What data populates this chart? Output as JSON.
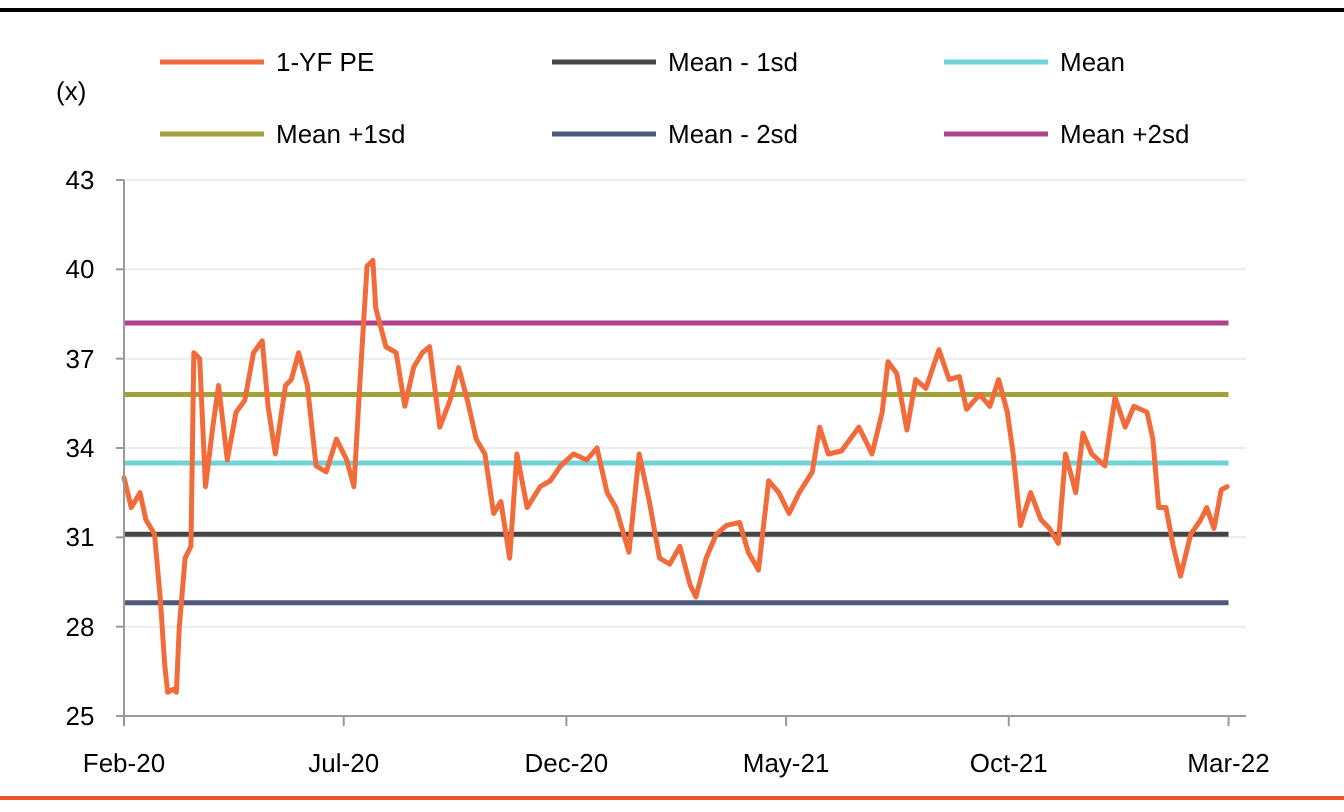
{
  "chart_data": {
    "type": "line",
    "ylabel": "(x)",
    "legend": "top",
    "grid": "y",
    "line_style": "solid",
    "marker": "none",
    "xlim": [
      "2020-02-01",
      "2022-03-13"
    ],
    "xticks": [
      {
        "value": "2020-02-01",
        "label": "Feb-20"
      },
      {
        "value": "2020-07-01",
        "label": "Jul-20"
      },
      {
        "value": "2020-12-01",
        "label": "Dec-20"
      },
      {
        "value": "2021-05-01",
        "label": "May-21"
      },
      {
        "value": "2021-10-01",
        "label": "Oct-21"
      },
      {
        "value": "2022-03-01",
        "label": "Mar-22"
      }
    ],
    "ylim": [
      25,
      43
    ],
    "yticks": [
      25,
      28,
      31,
      34,
      37,
      40,
      43
    ],
    "series": [
      {
        "name": "1-YF PE",
        "color": "#f26b3a",
        "x": [
          "2020-02-01",
          "2020-02-06",
          "2020-02-12",
          "2020-02-16",
          "2020-02-22",
          "2020-02-26",
          "2020-02-29",
          "2020-03-02",
          "2020-03-06",
          "2020-03-08",
          "2020-03-10",
          "2020-03-14",
          "2020-03-18",
          "2020-03-20",
          "2020-03-24",
          "2020-03-28",
          "2020-04-02",
          "2020-04-06",
          "2020-04-12",
          "2020-04-18",
          "2020-04-24",
          "2020-04-30",
          "2020-05-06",
          "2020-05-10",
          "2020-05-15",
          "2020-05-22",
          "2020-05-26",
          "2020-05-31",
          "2020-06-06",
          "2020-06-12",
          "2020-06-19",
          "2020-06-26",
          "2020-07-03",
          "2020-07-08",
          "2020-07-12",
          "2020-07-17",
          "2020-07-21",
          "2020-07-23",
          "2020-07-30",
          "2020-08-06",
          "2020-08-12",
          "2020-08-18",
          "2020-08-24",
          "2020-08-29",
          "2020-09-05",
          "2020-09-12",
          "2020-09-18",
          "2020-09-24",
          "2020-09-30",
          "2020-10-06",
          "2020-10-12",
          "2020-10-17",
          "2020-10-23",
          "2020-10-28",
          "2020-11-04",
          "2020-11-13",
          "2020-11-20",
          "2020-11-27",
          "2020-12-06",
          "2020-12-15",
          "2020-12-22",
          "2020-12-29",
          "2021-01-04",
          "2021-01-13",
          "2021-01-20",
          "2021-01-27",
          "2021-02-03",
          "2021-02-10",
          "2021-02-17",
          "2021-02-24",
          "2021-02-28",
          "2021-03-07",
          "2021-03-14",
          "2021-03-21",
          "2021-03-30",
          "2021-04-05",
          "2021-04-12",
          "2021-04-19",
          "2021-04-26",
          "2021-05-03",
          "2021-05-10",
          "2021-05-19",
          "2021-05-24",
          "2021-05-30",
          "2021-06-08",
          "2021-06-20",
          "2021-06-29",
          "2021-07-06",
          "2021-07-10",
          "2021-07-16",
          "2021-07-23",
          "2021-07-29",
          "2021-08-05",
          "2021-08-14",
          "2021-08-21",
          "2021-08-28",
          "2021-09-02",
          "2021-09-11",
          "2021-09-18",
          "2021-09-24",
          "2021-09-30",
          "2021-10-04",
          "2021-10-09",
          "2021-10-16",
          "2021-10-23",
          "2021-10-29",
          "2021-11-04",
          "2021-11-09",
          "2021-11-16",
          "2021-11-21",
          "2021-11-27",
          "2021-12-06",
          "2021-12-13",
          "2021-12-20",
          "2021-12-26",
          "2022-01-04",
          "2022-01-08",
          "2022-01-12",
          "2022-01-17",
          "2022-01-22",
          "2022-01-27",
          "2022-02-03",
          "2022-02-10",
          "2022-02-14",
          "2022-02-19",
          "2022-02-24",
          "2022-02-28"
        ],
        "values": [
          33.0,
          32.0,
          32.5,
          31.6,
          31.1,
          28.9,
          26.7,
          25.8,
          25.9,
          25.8,
          28.0,
          30.3,
          30.7,
          37.2,
          37.0,
          32.7,
          34.7,
          36.1,
          33.6,
          35.2,
          35.6,
          37.2,
          37.6,
          35.4,
          33.8,
          36.1,
          36.3,
          37.2,
          36.1,
          33.4,
          33.2,
          34.3,
          33.6,
          32.7,
          36.1,
          40.1,
          40.3,
          38.7,
          37.4,
          37.2,
          35.4,
          36.7,
          37.2,
          37.4,
          34.7,
          35.6,
          36.7,
          35.6,
          34.3,
          33.8,
          31.8,
          32.2,
          30.3,
          33.8,
          32.0,
          32.7,
          32.9,
          33.4,
          33.8,
          33.6,
          34.0,
          32.5,
          32.0,
          30.5,
          33.8,
          32.2,
          30.3,
          30.1,
          30.7,
          29.4,
          29.0,
          30.3,
          31.1,
          31.4,
          31.5,
          30.5,
          29.9,
          32.9,
          32.5,
          31.8,
          32.5,
          33.2,
          34.7,
          33.8,
          33.9,
          34.7,
          33.8,
          35.2,
          36.9,
          36.5,
          34.6,
          36.3,
          36.0,
          37.3,
          36.3,
          36.4,
          35.3,
          35.8,
          35.4,
          36.3,
          35.2,
          33.8,
          31.4,
          32.5,
          31.6,
          31.3,
          30.8,
          33.8,
          32.5,
          34.5,
          33.8,
          33.4,
          35.7,
          34.7,
          35.4,
          35.2,
          34.3,
          32.0,
          32.0,
          30.7,
          29.7,
          31.1,
          31.6,
          32.0,
          31.3,
          32.6,
          32.7
        ]
      }
    ],
    "ref_lines": [
      {
        "axis": "y",
        "value": 31.1,
        "label": "Mean - 1sd",
        "color": "#454545"
      },
      {
        "axis": "y",
        "value": 33.5,
        "label": "Mean",
        "color": "#6fd3d8"
      },
      {
        "axis": "y",
        "value": 35.8,
        "label": "Mean +1sd",
        "color": "#a3a23a"
      },
      {
        "axis": "y",
        "value": 28.8,
        "label": "Mean - 2sd",
        "color": "#4c5a7a"
      },
      {
        "axis": "y",
        "value": 38.2,
        "label": "Mean +2sd",
        "color": "#b0428a"
      }
    ]
  }
}
